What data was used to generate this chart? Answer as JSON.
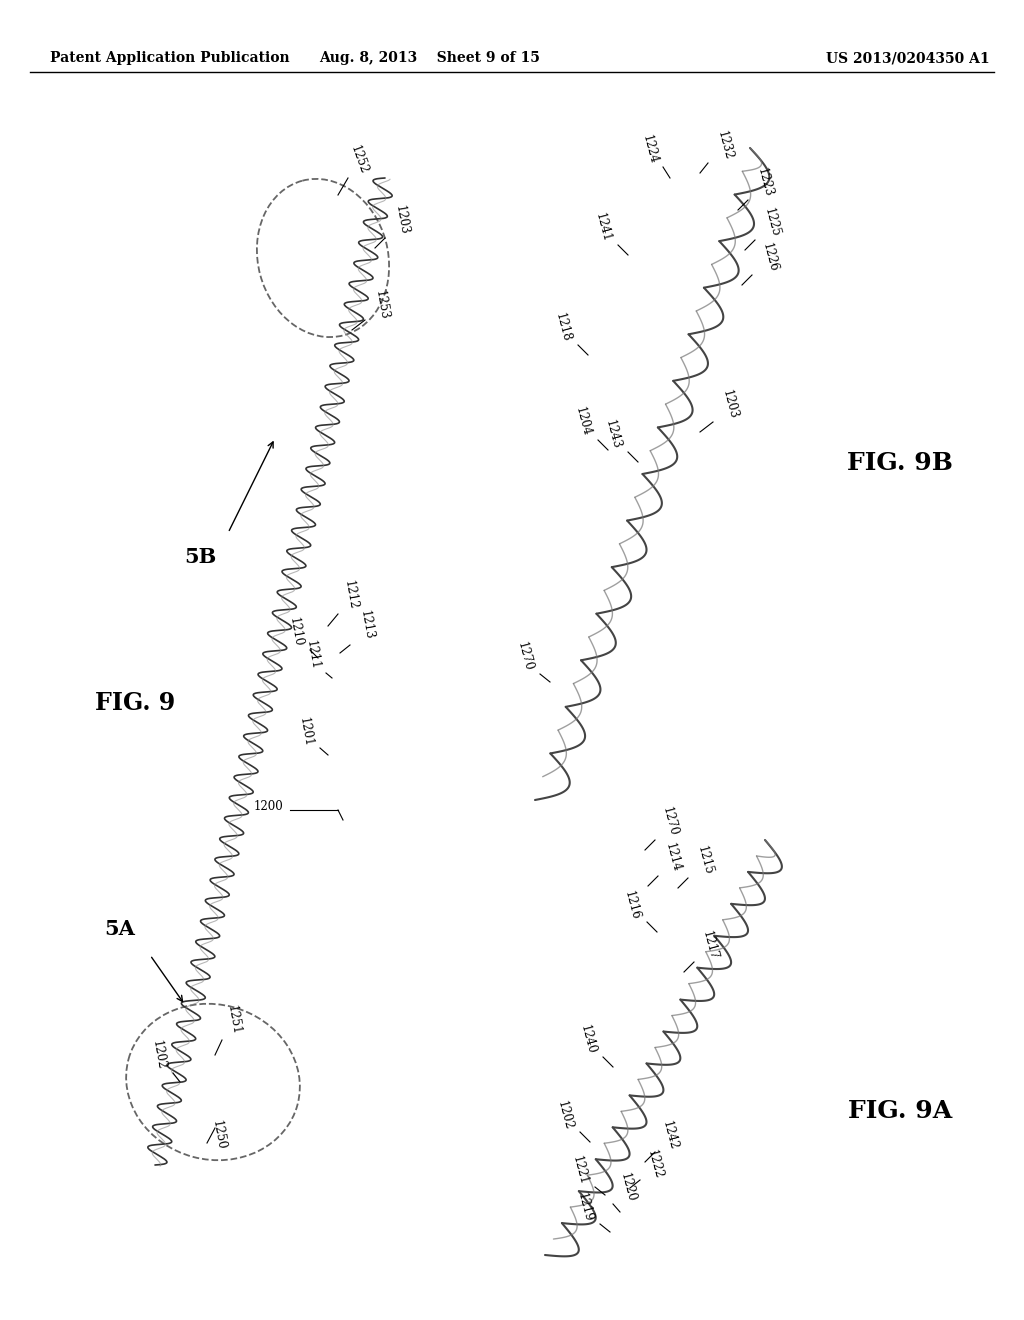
{
  "header_left": "Patent Application Publication",
  "header_mid": "Aug. 8, 2013    Sheet 9 of 15",
  "header_right": "US 2013/0204350 A1",
  "fig9_label": "FIG. 9",
  "fig9a_label": "FIG. 9A",
  "fig9b_label": "FIG. 9B",
  "label_5A": "5A",
  "label_5B": "5B",
  "background": "#ffffff"
}
